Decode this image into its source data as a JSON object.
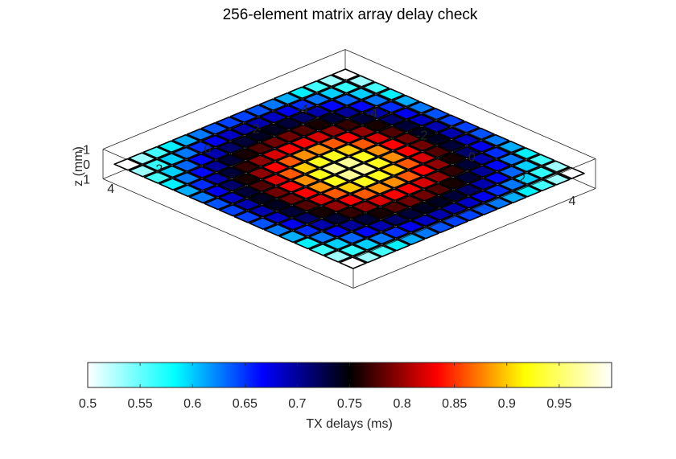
{
  "chart_data": {
    "type": "heatmap",
    "title": "256-element matrix array delay check",
    "zlabel": "z (mm)",
    "colorbar_label": "TX delays (ms)",
    "grid_size": [
      16,
      16
    ],
    "element_x_mm": [
      -4.5,
      -3.9,
      -3.3,
      -2.7,
      -2.1,
      -1.5,
      -0.9,
      -0.3,
      0.3,
      0.9,
      1.5,
      2.1,
      2.7,
      3.3,
      3.9,
      4.5
    ],
    "element_y_mm": [
      -4.5,
      -3.9,
      -3.3,
      -2.7,
      -2.1,
      -1.5,
      -0.9,
      -0.3,
      0.3,
      0.9,
      1.5,
      2.1,
      2.7,
      3.3,
      3.9,
      4.5
    ],
    "delay_model": "approximately radial focusing profile: minimum 0.5 ms at the four corners, maximum 1.0 ms at the array centre",
    "clim": [
      0.5,
      1.0
    ],
    "colormap": "hot/cold (white-cyan-blue-black-red-yellow-white)",
    "colormap_stops": [
      "#ffffff",
      "#00ffff",
      "#0000ff",
      "#000000",
      "#ff0000",
      "#ffff00",
      "#ffffff"
    ],
    "x_axis": {
      "ticks": [
        -4,
        -2,
        0,
        2,
        4
      ],
      "labels": [
        "-4",
        "-2",
        "0",
        "2",
        "4"
      ]
    },
    "y_axis": {
      "ticks": [
        -4,
        -2,
        0,
        2,
        4
      ],
      "labels": [
        "-4",
        "-2",
        "0",
        "2",
        "4"
      ]
    },
    "z_axis": {
      "ticks": [
        -1,
        0,
        1
      ],
      "labels": [
        "-1",
        "0",
        "1"
      ],
      "direction": "reversed"
    },
    "colorbar_ticks": [
      0.5,
      0.55,
      0.6,
      0.65,
      0.7,
      0.75,
      0.8,
      0.85,
      0.9,
      0.95
    ],
    "colorbar_tick_labels": [
      "0.5",
      "0.55",
      "0.6",
      "0.65",
      "0.7",
      "0.75",
      "0.8",
      "0.85",
      "0.9",
      "0.95"
    ],
    "box": true,
    "grid": false
  }
}
